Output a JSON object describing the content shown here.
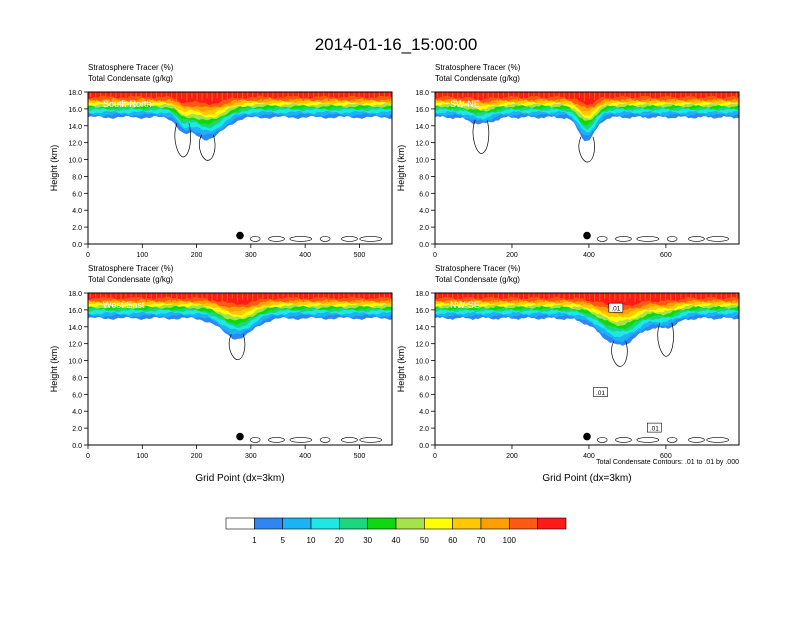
{
  "page_title": "2014-01-16_15:00:00",
  "colors": {
    "levels": [
      "#ffffff",
      "#2f86f0",
      "#1bb3f5",
      "#1ee8e6",
      "#1cd77c",
      "#10d810",
      "#a6e34a",
      "#ffff00",
      "#ffc800",
      "#ff9f00",
      "#ff5a10",
      "#ff1a1a"
    ],
    "contour_line": "#000000",
    "marker": "#000000"
  },
  "colorbar": {
    "labels": [
      "1",
      "5",
      "10",
      "20",
      "30",
      "40",
      "50",
      "60",
      "70",
      "100"
    ]
  },
  "footnote": "Total Condensate Contours: .01 to .01 by .000",
  "chart_data": [
    {
      "type": "heatmap",
      "name": "South-North",
      "subtitle_line1": "Stratosphere Tracer   (%)",
      "subtitle_line2": "Total Condensate   (g/kg)",
      "ylabel": "Height (km)",
      "xlabel": "",
      "xlim": [
        0,
        560
      ],
      "ylim": [
        0,
        18
      ],
      "xticks": [
        "0",
        "100",
        "200",
        "300",
        "400",
        "500"
      ],
      "yticks": [
        "0.0",
        "2.0",
        "4.0",
        "6.0",
        "8.0",
        "10.0",
        "12.0",
        "14.0",
        "16.0",
        "18.0"
      ],
      "marker_x": 280,
      "dip": [
        {
          "x": 220,
          "depth_km": 2.6,
          "width": 40
        },
        {
          "x": 175,
          "depth_km": 1.2,
          "width": 15
        }
      ],
      "contour_labels": []
    },
    {
      "type": "heatmap",
      "name": "SW-NE",
      "subtitle_line1": "Stratosphere Tracer   (%)",
      "subtitle_line2": "Total Condensate   (g/kg)",
      "ylabel": "Height (km)",
      "xlabel": "",
      "xlim": [
        0,
        790
      ],
      "ylim": [
        0,
        18
      ],
      "xticks": [
        "0",
        "200",
        "400",
        "600"
      ],
      "yticks": [
        "0.0",
        "2.0",
        "4.0",
        "6.0",
        "8.0",
        "10.0",
        "12.0",
        "14.0",
        "16.0",
        "18.0"
      ],
      "marker_x": 395,
      "dip": [
        {
          "x": 395,
          "depth_km": 2.8,
          "width": 30
        },
        {
          "x": 120,
          "depth_km": 0.8,
          "width": 40
        }
      ],
      "contour_labels": []
    },
    {
      "type": "heatmap",
      "name": "West-East",
      "subtitle_line1": "Stratosphere Tracer   (%)",
      "subtitle_line2": "Total Condensate   (g/kg)",
      "ylabel": "Height (km)",
      "xlabel": "Grid Point (dx=3km)",
      "xlim": [
        0,
        560
      ],
      "ylim": [
        0,
        18
      ],
      "xticks": [
        "0",
        "100",
        "200",
        "300",
        "400",
        "500"
      ],
      "yticks": [
        "0.0",
        "2.0",
        "4.0",
        "6.0",
        "8.0",
        "10.0",
        "12.0",
        "14.0",
        "16.0",
        "18.0"
      ],
      "marker_x": 280,
      "dip": [
        {
          "x": 275,
          "depth_km": 2.4,
          "width": 40
        }
      ],
      "contour_labels": []
    },
    {
      "type": "heatmap",
      "name": "NW-SE",
      "subtitle_line1": "Stratosphere Tracer   (%)",
      "subtitle_line2": "Total Condensate   (g/kg)",
      "ylabel": "Height (km)",
      "xlabel": "Grid Point (dx=3km)",
      "xlim": [
        0,
        790
      ],
      "ylim": [
        0,
        18
      ],
      "xticks": [
        "0",
        "200",
        "400",
        "600"
      ],
      "yticks": [
        "0.0",
        "2.0",
        "4.0",
        "6.0",
        "8.0",
        "10.0",
        "12.0",
        "14.0",
        "16.0",
        "18.0"
      ],
      "marker_x": 395,
      "dip": [
        {
          "x": 480,
          "depth_km": 3.2,
          "width": 70
        },
        {
          "x": 600,
          "depth_km": 1.0,
          "width": 40
        }
      ],
      "contour_labels": [
        {
          "text": ".01",
          "x": 470,
          "y": 16.2
        },
        {
          "text": ".01",
          "x": 430,
          "y": 6.2
        },
        {
          "text": ".01",
          "x": 570,
          "y": 2.0
        }
      ]
    }
  ]
}
